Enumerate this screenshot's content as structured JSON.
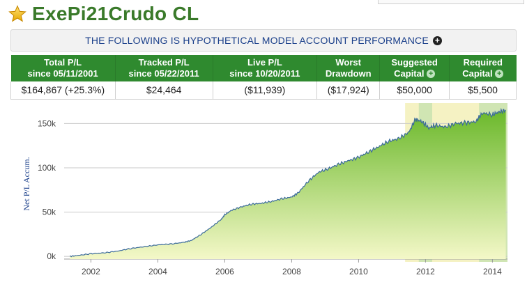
{
  "header": {
    "title": "ExePi21Crudo CL",
    "star_color": "#f5c518"
  },
  "banner": {
    "text": "THE FOLLOWING IS HYPOTHETICAL MODEL ACCOUNT PERFORMANCE"
  },
  "stats": {
    "headers": [
      {
        "line1": "Total P/L",
        "line2": "since 05/11/2001"
      },
      {
        "line1": "Tracked P/L",
        "line2": "since 05/22/2011"
      },
      {
        "line1": "Live P/L",
        "line2": "since 10/20/2011"
      },
      {
        "line1": "Worst",
        "line2": "Drawdown"
      },
      {
        "line1": "Suggested",
        "line2": "Capital"
      },
      {
        "line1": "Required",
        "line2": "Capital"
      }
    ],
    "values": [
      "$164,867 (+25.3%)",
      "$24,464",
      "($11,939)",
      "($17,924)",
      "$50,000",
      "$5,500"
    ],
    "header_bg": "#2f8a2f"
  },
  "chart_data": {
    "type": "area",
    "title": "",
    "xlabel": "",
    "ylabel": "Net P/L Accum.",
    "xlim": [
      2001.2,
      2014.45
    ],
    "ylim": [
      -3000,
      170000
    ],
    "x_ticks": [
      2002,
      2004,
      2006,
      2008,
      2010,
      2012,
      2014
    ],
    "x_tick_labels": [
      "2002",
      "2004",
      "2006",
      "2008",
      "2010",
      "2012",
      "2014"
    ],
    "y_ticks": [
      0,
      50000,
      100000,
      150000
    ],
    "y_tick_labels": [
      "0k",
      "50k",
      "100k",
      "150k"
    ],
    "grid": true,
    "shaded_ranges": [
      {
        "from": 2011.39,
        "to": 2014.45,
        "color": "#f3f0b8"
      },
      {
        "from": 2011.8,
        "to": 2012.2,
        "color": "#c9e3b0"
      },
      {
        "from": 2013.6,
        "to": 2014.45,
        "color": "#c9e3b0"
      }
    ],
    "line_color": "#3a6a9a",
    "fill_top": "#6ab82a",
    "fill_bottom": "#f4f8c8",
    "series": [
      {
        "x": [
          2001.37,
          2001.6,
          2002.0,
          2002.4,
          2002.8,
          2003.2,
          2003.6,
          2004.0,
          2004.4,
          2004.8,
          2005.0,
          2005.3,
          2005.6,
          2005.9,
          2006.0,
          2006.2,
          2006.5,
          2006.8,
          2007.1,
          2007.4,
          2007.7,
          2008.0,
          2008.2,
          2008.5,
          2008.8,
          2009.1,
          2009.4,
          2009.7,
          2010.0,
          2010.3,
          2010.6,
          2010.9,
          2011.2,
          2011.5,
          2011.7,
          2011.9,
          2012.1,
          2012.3,
          2012.6,
          2012.9,
          2013.2,
          2013.5,
          2013.7,
          2014.0,
          2014.2,
          2014.4
        ],
        "y": [
          0,
          1000,
          3000,
          4000,
          6000,
          9000,
          11000,
          13000,
          14000,
          16000,
          18000,
          25000,
          33000,
          42000,
          47000,
          52000,
          56000,
          59000,
          60000,
          62000,
          65000,
          67000,
          72000,
          85000,
          95000,
          99000,
          104000,
          108000,
          112000,
          118000,
          124000,
          130000,
          133000,
          140000,
          155000,
          152000,
          145000,
          148000,
          146000,
          150000,
          151000,
          152000,
          162000,
          160000,
          163000,
          165000
        ]
      }
    ]
  }
}
